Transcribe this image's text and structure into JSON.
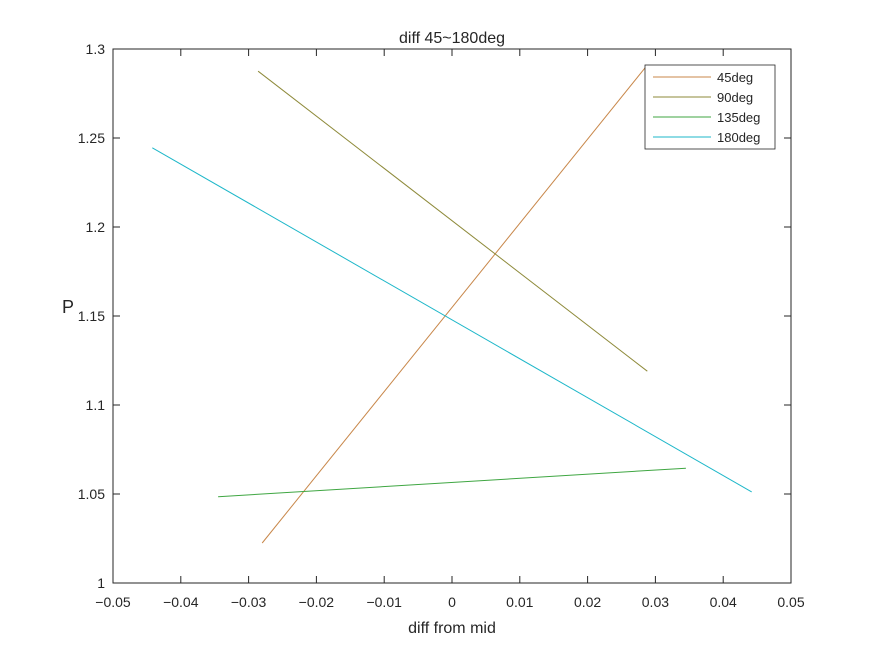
{
  "chart_data": {
    "type": "line",
    "title": "diff 45~180deg",
    "xlabel": "diff from mid",
    "ylabel": "P",
    "xlim": [
      -0.05,
      0.05
    ],
    "ylim": [
      1.0,
      1.3
    ],
    "xticks": [
      -0.05,
      -0.04,
      -0.03,
      -0.02,
      -0.01,
      0,
      0.01,
      0.02,
      0.03,
      0.04,
      0.05
    ],
    "xtick_labels": [
      "−0.05",
      "−0.04",
      "−0.03",
      "−0.02",
      "−0.01",
      "0",
      "0.01",
      "0.02",
      "0.03",
      "0.04",
      "0.05"
    ],
    "yticks": [
      1.0,
      1.05,
      1.1,
      1.15,
      1.2,
      1.25,
      1.3
    ],
    "ytick_labels": [
      "1",
      "1.05",
      "1.1",
      "1.15",
      "1.2",
      "1.25",
      "1.3"
    ],
    "grid": false,
    "box": true,
    "legend_position": "top-right",
    "series": [
      {
        "name": "45deg",
        "color": "#C8874A",
        "x": [
          -0.028,
          0.0286
        ],
        "y": [
          1.0225,
          1.29
        ]
      },
      {
        "name": "90deg",
        "color": "#8E8A3A",
        "x": [
          -0.0286,
          0.0288
        ],
        "y": [
          1.2875,
          1.119
        ]
      },
      {
        "name": "135deg",
        "color": "#3FA642",
        "x": [
          -0.0345,
          0.0345
        ],
        "y": [
          1.0485,
          1.0645
        ]
      },
      {
        "name": "180deg",
        "color": "#1DB7C9",
        "x": [
          -0.0442,
          0.0442
        ],
        "y": [
          1.2445,
          1.0512
        ]
      }
    ]
  }
}
